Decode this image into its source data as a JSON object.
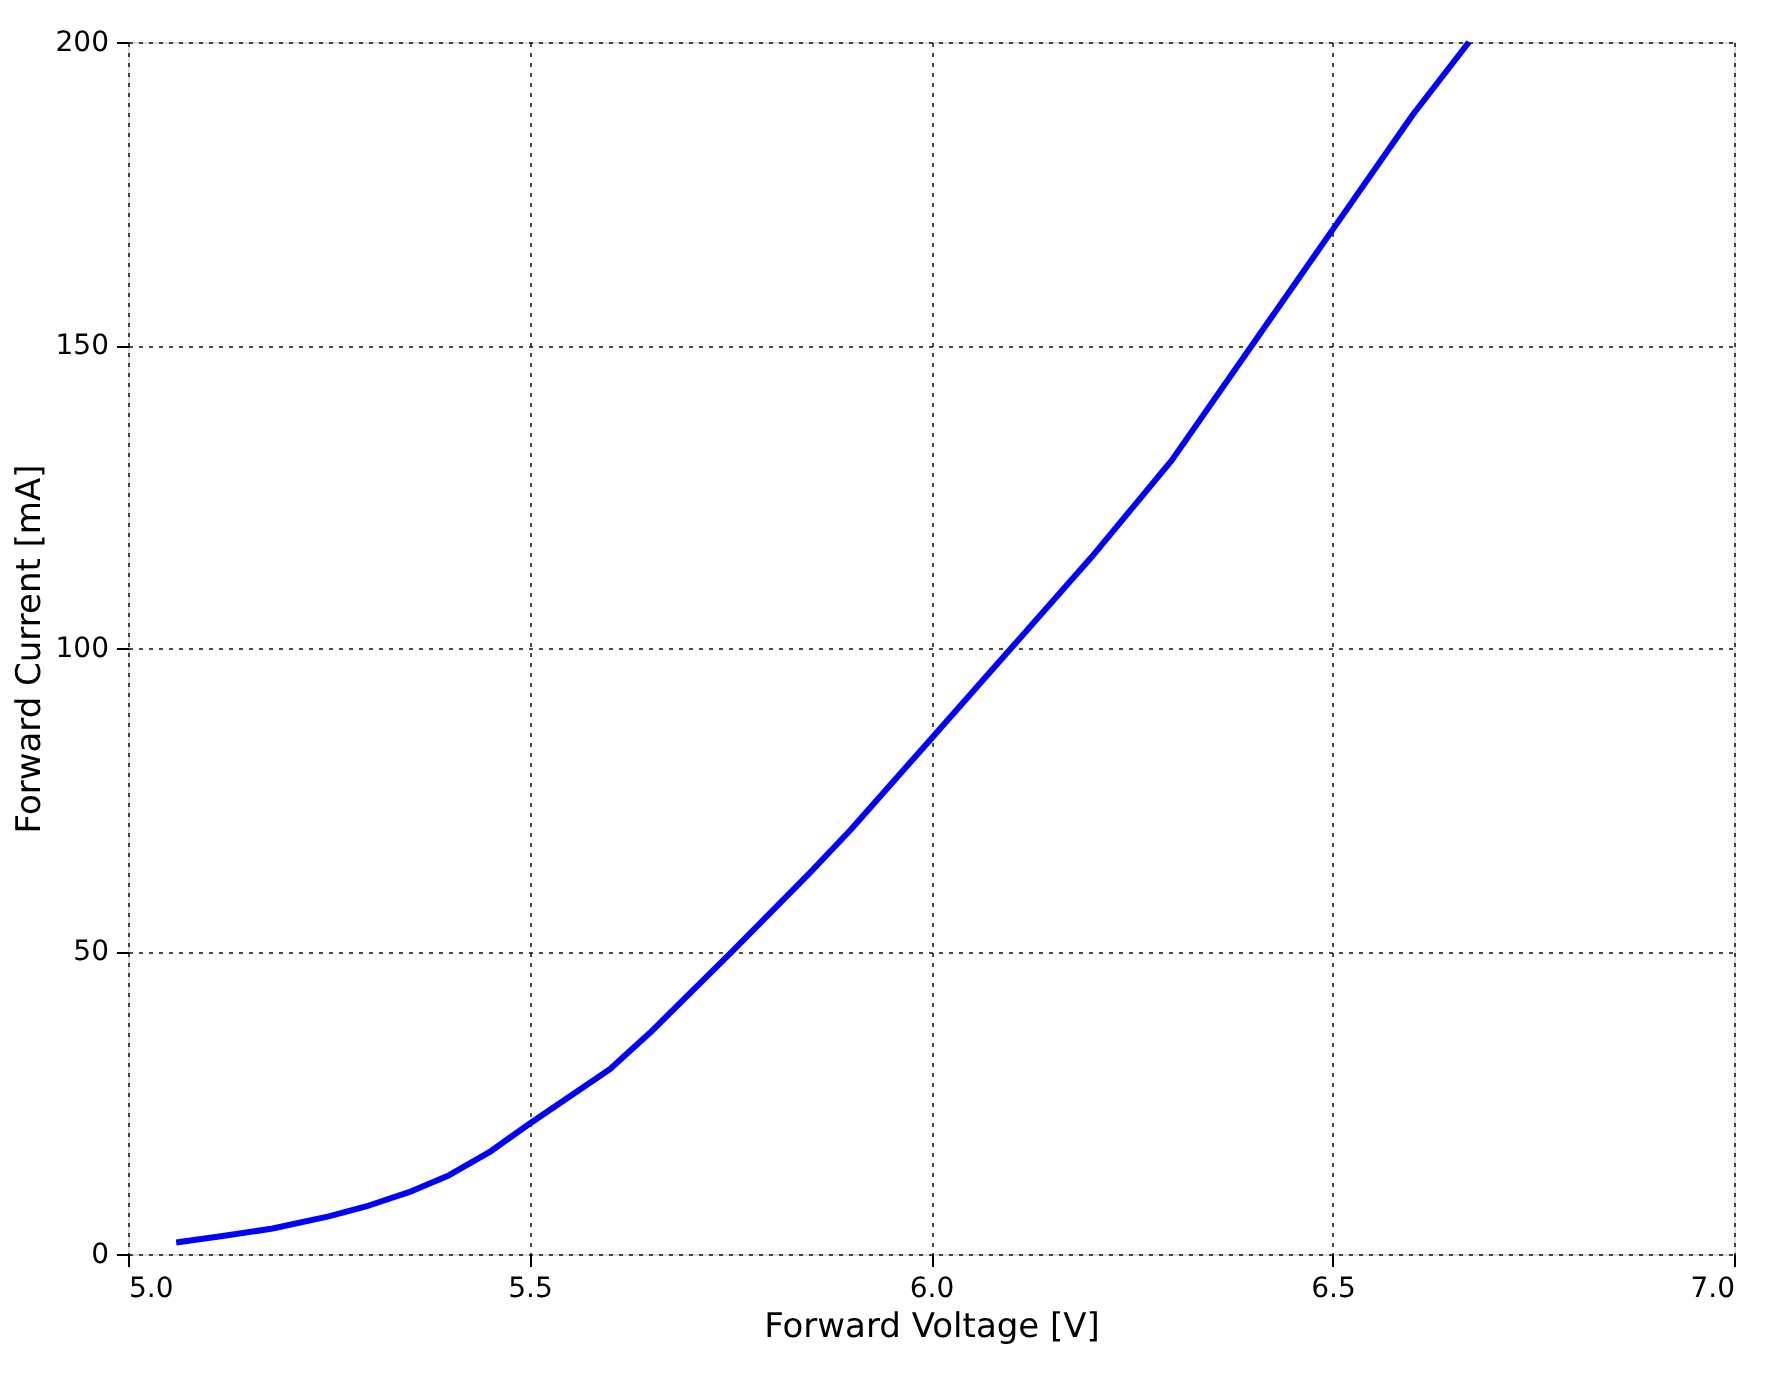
{
  "chart_data": {
    "type": "line",
    "xlabel": "Forward Voltage [V]",
    "ylabel": "Forward Current [mA]",
    "x": [
      5.06,
      5.12,
      5.18,
      5.25,
      5.3,
      5.35,
      5.4,
      5.45,
      5.5,
      5.6,
      5.65,
      5.75,
      5.85,
      5.9,
      6.0,
      6.1,
      6.2,
      6.25,
      6.3,
      6.4,
      6.5,
      6.6,
      6.67
    ],
    "series": [
      {
        "color": "#0000ff",
        "values": [
          1.9,
          3.0,
          4.2,
          6.2,
          8.0,
          10.2,
          13.0,
          16.8,
          21.5,
          30.5,
          36.5,
          49.6,
          63,
          70,
          85,
          100,
          115,
          123,
          131,
          150,
          169,
          188,
          200
        ]
      }
    ],
    "xlim": [
      5.0,
      7.0
    ],
    "xticks": [
      {
        "value": 5.0,
        "label": "5.0"
      },
      5.5,
      {
        "value": 6.0,
        "label": "6.0"
      },
      6.5,
      {
        "value": 7.0,
        "label": "7.0"
      }
    ],
    "ylim": [
      0,
      200
    ],
    "yticks": [
      0,
      50,
      100,
      150,
      200
    ],
    "grid": true,
    "marker": "none",
    "line_style": "solid"
  }
}
